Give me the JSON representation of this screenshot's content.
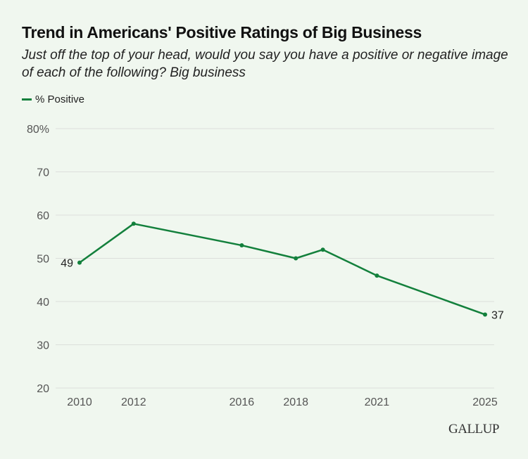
{
  "chart_data": {
    "type": "line",
    "title": "Trend in Americans' Positive Ratings of Big Business",
    "subtitle": "Just off the top of your head, would you say you have a positive or negative image of each of the following? Big business",
    "xlabel": "",
    "ylabel": "",
    "ylim": [
      20,
      80
    ],
    "xlim": [
      2010,
      2025
    ],
    "yticks": [
      20,
      30,
      40,
      50,
      60,
      70,
      80
    ],
    "ytick_labels": [
      "20",
      "30",
      "40",
      "50",
      "60",
      "70",
      "80%"
    ],
    "xticks": [
      2010,
      2012,
      2016,
      2018,
      2021,
      2025
    ],
    "xtick_labels": [
      "2010",
      "2012",
      "2016",
      "2018",
      "2021",
      "2025"
    ],
    "grid": true,
    "legend_position": "top-left",
    "series": [
      {
        "name": "% Positive",
        "color": "#13803c",
        "x": [
          2010,
          2012,
          2016,
          2018,
          2019,
          2021,
          2025
        ],
        "values": [
          49,
          58,
          53,
          50,
          52,
          46,
          37
        ],
        "labels": [
          {
            "x": 2010,
            "text": "49",
            "side": "left"
          },
          {
            "x": 2025,
            "text": "37",
            "side": "right"
          }
        ]
      }
    ]
  },
  "brand": "GALLUP"
}
